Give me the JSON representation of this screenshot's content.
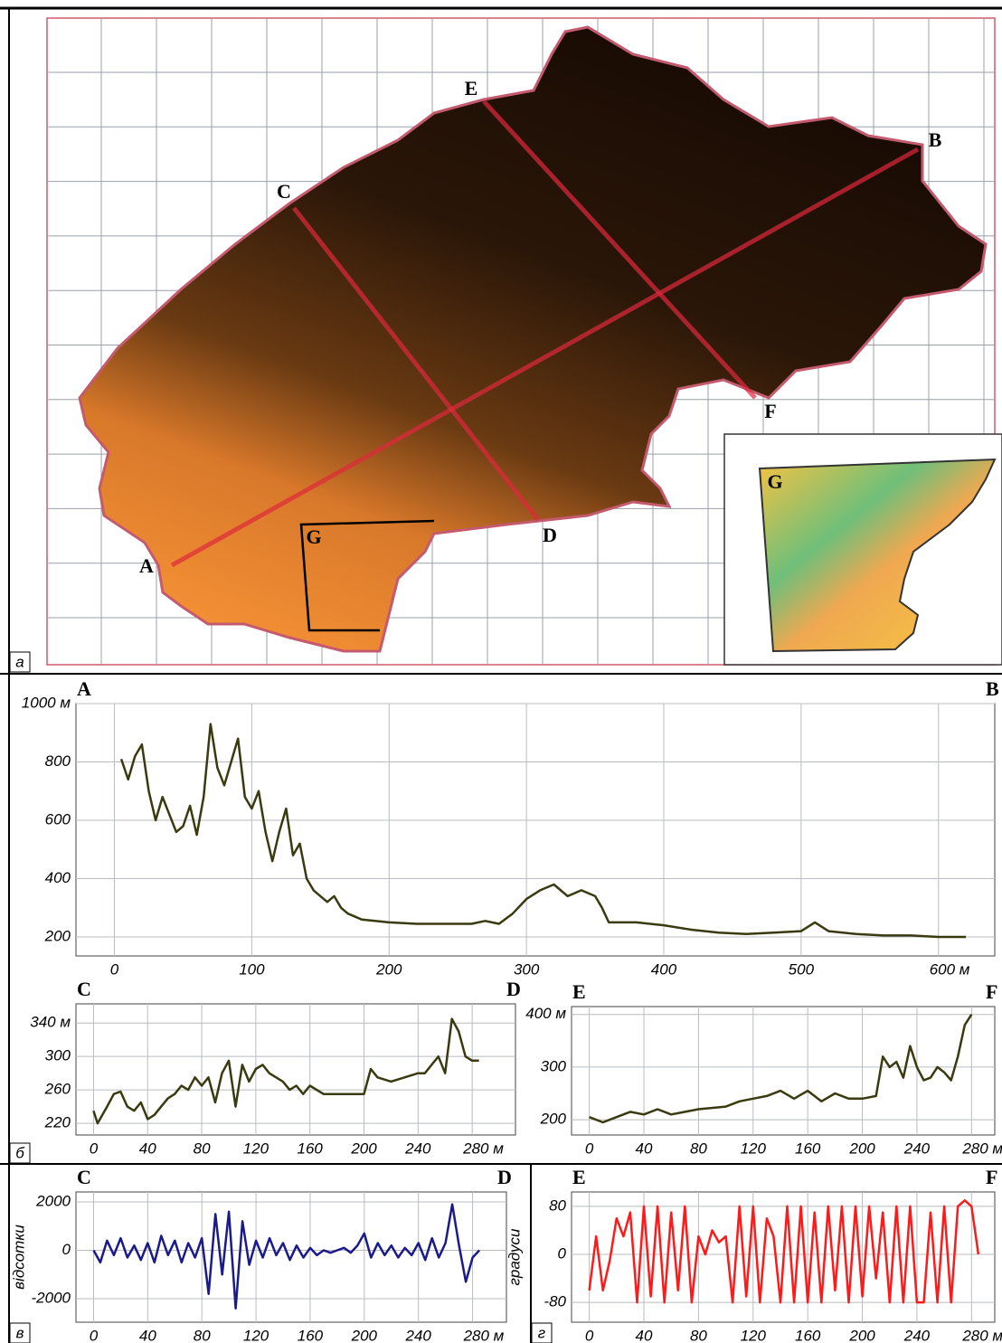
{
  "panel_labels": [
    "а",
    "б",
    "в",
    "г"
  ],
  "map_labels": [
    "A",
    "B",
    "C",
    "D",
    "E",
    "F",
    "G"
  ],
  "inset_label": "G",
  "chart_data": [
    {
      "type": "line",
      "start_label": "A",
      "end_label": "B",
      "color": "#3a3a10",
      "grid": true,
      "xlim": [
        -28,
        641
      ],
      "ylim": [
        135,
        1000
      ],
      "xticks": [
        0,
        100,
        200,
        300,
        400,
        500,
        {
          "value": 600,
          "label": "600 м"
        }
      ],
      "yticks": [
        200,
        400,
        600,
        800,
        {
          "value": 1000,
          "label": "1000 м"
        }
      ],
      "x": [
        5,
        10,
        15,
        20,
        25,
        30,
        35,
        40,
        45,
        50,
        55,
        60,
        65,
        70,
        75,
        80,
        85,
        90,
        95,
        100,
        105,
        110,
        115,
        120,
        125,
        130,
        135,
        140,
        145,
        150,
        155,
        160,
        165,
        170,
        180,
        200,
        220,
        240,
        260,
        270,
        280,
        290,
        300,
        310,
        320,
        330,
        340,
        350,
        355,
        360,
        380,
        400,
        420,
        440,
        460,
        480,
        500,
        510,
        520,
        540,
        560,
        580,
        600,
        620
      ],
      "values": [
        810,
        740,
        820,
        860,
        700,
        600,
        680,
        620,
        560,
        580,
        650,
        550,
        680,
        930,
        780,
        720,
        800,
        880,
        680,
        640,
        700,
        560,
        460,
        560,
        640,
        480,
        520,
        400,
        360,
        340,
        320,
        340,
        300,
        280,
        260,
        250,
        245,
        245,
        245,
        255,
        245,
        280,
        330,
        360,
        380,
        340,
        360,
        340,
        300,
        250,
        250,
        240,
        225,
        215,
        210,
        215,
        220,
        250,
        220,
        210,
        205,
        205,
        200,
        200
      ]
    },
    {
      "type": "line",
      "start_label": "C",
      "end_label": "D",
      "color": "#3a3a10",
      "grid": true,
      "xlim": [
        -13,
        312
      ],
      "ylim": [
        206,
        363
      ],
      "xticks": [
        0,
        40,
        80,
        120,
        160,
        200,
        240,
        {
          "value": 280,
          "label": "280 м"
        }
      ],
      "yticks": [
        220,
        260,
        300,
        {
          "value": 340,
          "label": "340 м"
        }
      ],
      "x": [
        0,
        3,
        10,
        15,
        20,
        25,
        30,
        35,
        40,
        45,
        50,
        55,
        60,
        65,
        70,
        75,
        80,
        85,
        90,
        95,
        100,
        105,
        110,
        115,
        120,
        125,
        130,
        135,
        140,
        145,
        150,
        155,
        160,
        170,
        180,
        190,
        200,
        205,
        210,
        220,
        230,
        240,
        245,
        250,
        255,
        260,
        265,
        270,
        275,
        280,
        285
      ],
      "values": [
        235,
        220,
        240,
        255,
        258,
        240,
        235,
        245,
        225,
        230,
        240,
        250,
        255,
        265,
        260,
        275,
        265,
        275,
        245,
        280,
        295,
        240,
        290,
        270,
        285,
        290,
        280,
        275,
        270,
        260,
        265,
        255,
        265,
        255,
        255,
        255,
        255,
        285,
        275,
        270,
        275,
        280,
        280,
        290,
        300,
        280,
        345,
        330,
        300,
        295,
        295
      ]
    },
    {
      "type": "line",
      "start_label": "E",
      "end_label": "F",
      "color": "#3a3a10",
      "grid": true,
      "xlim": [
        -13,
        297
      ],
      "ylim": [
        171,
        415
      ],
      "xticks": [
        0,
        40,
        80,
        120,
        160,
        200,
        240,
        {
          "value": 280,
          "label": "280 м"
        }
      ],
      "yticks": [
        200,
        300,
        {
          "value": 400,
          "label": "400 м"
        }
      ],
      "x": [
        0,
        10,
        20,
        30,
        40,
        50,
        60,
        80,
        100,
        110,
        120,
        130,
        140,
        150,
        160,
        170,
        180,
        190,
        200,
        210,
        215,
        220,
        225,
        230,
        235,
        240,
        245,
        250,
        255,
        260,
        265,
        270,
        275,
        280
      ],
      "values": [
        205,
        195,
        205,
        215,
        210,
        220,
        210,
        220,
        225,
        235,
        240,
        245,
        255,
        240,
        255,
        235,
        250,
        240,
        240,
        245,
        320,
        300,
        310,
        280,
        340,
        300,
        275,
        280,
        300,
        290,
        275,
        320,
        380,
        400
      ]
    },
    {
      "type": "line",
      "start_label": "C",
      "end_label": "D",
      "y_label": "відсотки",
      "color": "#1a1a8c",
      "grid": true,
      "xlim": [
        -13,
        305
      ],
      "ylim": [
        -2970,
        2410
      ],
      "xticks": [
        0,
        40,
        80,
        120,
        160,
        200,
        240,
        {
          "value": 280,
          "label": "280 м"
        }
      ],
      "yticks": [
        -2000,
        0,
        2000
      ],
      "x": [
        0,
        5,
        10,
        15,
        20,
        25,
        30,
        35,
        40,
        45,
        50,
        55,
        60,
        65,
        70,
        75,
        80,
        85,
        90,
        95,
        100,
        105,
        110,
        115,
        120,
        125,
        130,
        135,
        140,
        145,
        150,
        155,
        160,
        165,
        170,
        175,
        180,
        185,
        190,
        195,
        200,
        205,
        210,
        215,
        220,
        225,
        230,
        235,
        240,
        245,
        250,
        255,
        260,
        265,
        270,
        275,
        280,
        285
      ],
      "values": [
        0,
        -500,
        400,
        -200,
        500,
        -300,
        200,
        -400,
        300,
        -500,
        600,
        -200,
        400,
        -500,
        300,
        -300,
        500,
        -1800,
        1500,
        -1000,
        1600,
        -2400,
        1200,
        -600,
        400,
        -300,
        500,
        -200,
        300,
        -400,
        200,
        -300,
        100,
        -200,
        0,
        -100,
        0,
        100,
        -100,
        200,
        700,
        -300,
        300,
        -200,
        200,
        -300,
        100,
        -200,
        300,
        -400,
        500,
        -300,
        300,
        1900,
        200,
        -1300,
        -300,
        0
      ]
    },
    {
      "type": "line",
      "start_label": "E",
      "end_label": "F",
      "y_label": "градуси",
      "color": "#ff1a1a",
      "grid": true,
      "xlim": [
        -13,
        297
      ],
      "ylim": [
        -113,
        104
      ],
      "xticks": [
        0,
        40,
        80,
        120,
        160,
        200,
        240,
        {
          "value": 280,
          "label": "280 м"
        }
      ],
      "yticks": [
        -80,
        0,
        80
      ],
      "x": [
        0,
        5,
        10,
        15,
        20,
        25,
        30,
        35,
        40,
        45,
        50,
        55,
        60,
        65,
        70,
        75,
        80,
        85,
        90,
        95,
        100,
        105,
        110,
        115,
        120,
        125,
        130,
        135,
        140,
        145,
        150,
        155,
        160,
        165,
        170,
        175,
        180,
        185,
        190,
        195,
        200,
        205,
        210,
        215,
        220,
        225,
        230,
        235,
        240,
        245,
        250,
        255,
        260,
        265,
        270,
        275,
        280,
        285
      ],
      "values": [
        -60,
        30,
        -60,
        -10,
        60,
        30,
        70,
        -80,
        80,
        -70,
        80,
        -80,
        70,
        -60,
        80,
        -80,
        30,
        0,
        40,
        20,
        30,
        -80,
        80,
        -70,
        80,
        -80,
        60,
        30,
        -80,
        80,
        -80,
        80,
        -80,
        70,
        -80,
        80,
        -60,
        80,
        -80,
        80,
        -70,
        80,
        -40,
        70,
        -80,
        80,
        -80,
        80,
        -80,
        -80,
        70,
        -80,
        80,
        -80,
        80,
        90,
        80,
        0
      ]
    }
  ]
}
